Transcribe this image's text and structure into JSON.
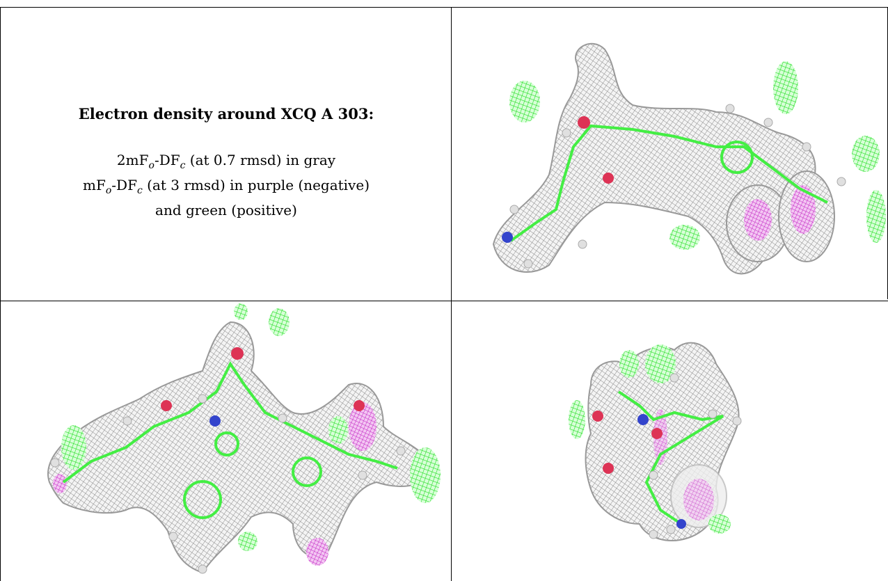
{
  "caption": {
    "title": "Electron density around XCQ A 303:",
    "line1_prefix": "2mF",
    "line1_sub_o": "o",
    "line1_mid": "-DF",
    "line1_sub_c": "c",
    "line1_suffix": " (at 0.7 rmsd) in gray",
    "line2_prefix": "mF",
    "line2_sub_o": "o",
    "line2_mid": "-DF",
    "line2_sub_c": "c",
    "line2_suffix": " (at 3 rmsd) in purple (negative)",
    "line3": "and green (positive)"
  },
  "colors": {
    "density_2fofc": "#9a9a9a",
    "density_positive": "#22ee22",
    "density_negative": "#cc22cc",
    "bond": "#44ee44",
    "oxygen": "#dd3355",
    "nitrogen": "#3344cc",
    "hydrogen": "#e0e0e0",
    "border": "#000000"
  },
  "views": [
    {
      "name": "view-top-right"
    },
    {
      "name": "view-bottom-left"
    },
    {
      "name": "view-bottom-right"
    }
  ]
}
